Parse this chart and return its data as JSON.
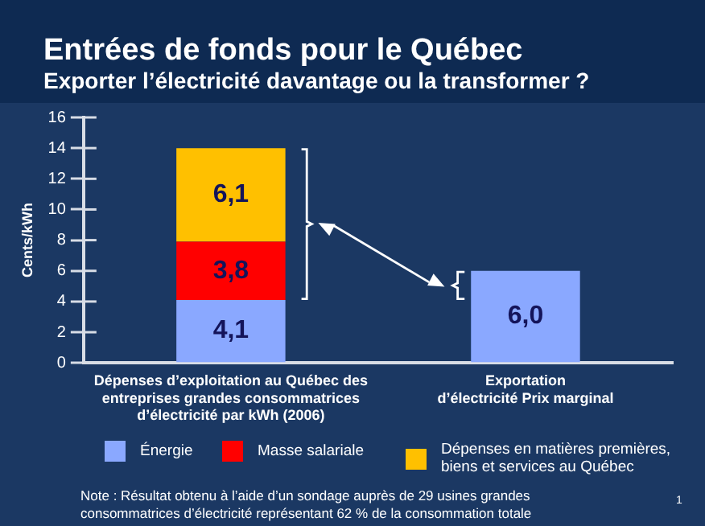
{
  "chart_data": {
    "type": "bar",
    "title": "Entrées de fonds pour le Québec",
    "subtitle": "Exporter l’électricité davantage ou la transformer ?",
    "ylabel": "Cents/kWh",
    "categories": [
      "Dépenses d’exploitation au Québec des entreprises grandes consommatrices d’électricité par kWh (2006)",
      "Exportation d’électricité Prix marginal"
    ],
    "stacked": true,
    "ylim": [
      0,
      16
    ],
    "yticks": [
      0,
      2,
      4,
      6,
      8,
      10,
      12,
      14,
      16
    ],
    "grid": false,
    "legend": "bottom",
    "series": [
      {
        "name": "Énergie",
        "color": "#8aa8ff",
        "values": [
          4.1,
          6.0
        ],
        "value_labels": [
          "4,1",
          "6,0"
        ]
      },
      {
        "name": "Masse salariale",
        "color": "#ff0000",
        "values": [
          3.8,
          null
        ],
        "value_labels": [
          "3,8",
          null
        ]
      },
      {
        "name": "Dépenses en matières premières, biens et services au Québec",
        "color": "#ffc000",
        "values": [
          6.1,
          null
        ],
        "value_labels": [
          "6,1",
          null
        ]
      }
    ],
    "annotations": [
      "Note : Résultat obtenu à l’aide d’un sondage auprès de 29 usines grandes consommatrices d’électricité représentant 62 % de la consommation totale",
      "1"
    ]
  }
}
